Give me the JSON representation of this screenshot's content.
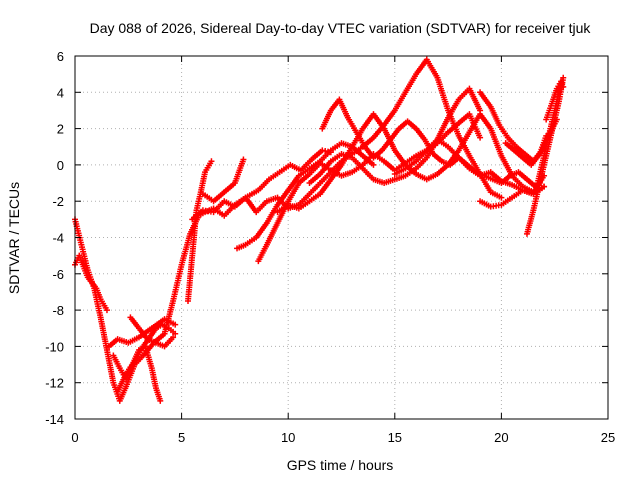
{
  "chart_data": {
    "type": "scatter",
    "title": "Day 088 of 2026, Sidereal Day-to-day VTEC variation (SDTVAR) for receiver tjuk",
    "xlabel": "GPS time / hours",
    "ylabel": "SDTVAR / TECUs",
    "xlim": [
      0,
      25
    ],
    "ylim": [
      -14,
      6
    ],
    "xticks": [
      0,
      5,
      10,
      15,
      20,
      25
    ],
    "yticks": [
      -14,
      -12,
      -10,
      -8,
      -6,
      -4,
      -2,
      0,
      2,
      4,
      6
    ],
    "grid": true,
    "grid_style": "dotted",
    "marker": "plus",
    "color": "#ff0000",
    "legend": "none",
    "series": [
      {
        "x": [
          0.0,
          0.3,
          0.6,
          0.9,
          1.2,
          1.5,
          1.8,
          2.1,
          2.4,
          2.8,
          3.2,
          3.7,
          4.2,
          4.6,
          5.0,
          5.4,
          5.8,
          6.1,
          6.5,
          7.0,
          7.5,
          8.0,
          8.6,
          9.1,
          9.6,
          10.1,
          10.6,
          11.1,
          11.6,
          12.0
        ],
        "y": [
          -3.0,
          -4.4,
          -5.8,
          -6.8,
          -8.4,
          -10.2,
          -12.0,
          -13.0,
          -12.2,
          -11.0,
          -10.5,
          -9.8,
          -9.3,
          -7.5,
          -5.5,
          -3.8,
          -2.8,
          -2.6,
          -2.4,
          -2.8,
          -2.2,
          -1.8,
          -1.4,
          -0.8,
          -0.4,
          0.0,
          -0.3,
          0.3,
          0.8,
          0.7
        ]
      },
      {
        "x": [
          0.0,
          0.2,
          0.4,
          0.6,
          0.8,
          1.0,
          1.2,
          1.5
        ],
        "y": [
          -5.5,
          -5.0,
          -5.6,
          -6.2,
          -6.5,
          -6.8,
          -7.4,
          -8.0
        ]
      },
      {
        "x": [
          1.8,
          2.1,
          2.4,
          2.7,
          3.0,
          3.3,
          3.6,
          3.8,
          4.0
        ],
        "y": [
          -10.5,
          -11.2,
          -11.8,
          -11.0,
          -10.2,
          -10.0,
          -11.2,
          -12.3,
          -13.0
        ]
      },
      {
        "x": [
          2.0,
          2.4,
          2.8,
          3.2,
          3.5,
          3.8,
          4.1,
          4.4,
          4.7
        ],
        "y": [
          -12.5,
          -11.5,
          -10.8,
          -10.0,
          -9.5,
          -9.0,
          -8.8,
          -9.0,
          -9.3
        ]
      },
      {
        "x": [
          1.6,
          2.0,
          2.5,
          3.0,
          3.6,
          4.2,
          4.7
        ],
        "y": [
          -10.0,
          -9.6,
          -9.8,
          -9.5,
          -9.0,
          -8.5,
          -8.8
        ]
      },
      {
        "x": [
          2.6,
          3.0,
          3.4,
          3.8,
          4.2,
          4.6
        ],
        "y": [
          -8.4,
          -9.0,
          -9.6,
          -9.8,
          -10.0,
          -9.5
        ]
      },
      {
        "x": [
          5.3,
          5.5,
          5.7,
          5.9,
          6.1,
          6.4
        ],
        "y": [
          -7.5,
          -5.0,
          -2.5,
          -1.5,
          -0.4,
          0.2
        ]
      },
      {
        "x": [
          5.5,
          6.0,
          6.5,
          7.0,
          7.5,
          8.0,
          8.5,
          9.0,
          9.5,
          10.0,
          10.5,
          11.0,
          11.5,
          12.0,
          12.5,
          13.0,
          13.5,
          14.0,
          14.5,
          15.0,
          15.5,
          16.0,
          16.5,
          17.0,
          17.5,
          18.0,
          18.5,
          19.0,
          19.5,
          20.0
        ],
        "y": [
          -3.0,
          -2.5,
          -2.6,
          -2.0,
          -2.3,
          -1.8,
          -2.6,
          -2.0,
          -1.8,
          -2.4,
          -2.2,
          -1.6,
          -1.0,
          -0.4,
          0.2,
          0.6,
          1.0,
          1.5,
          2.2,
          3.0,
          4.0,
          5.0,
          5.8,
          4.8,
          3.0,
          1.6,
          0.5,
          -0.5,
          -1.5,
          -1.8
        ]
      },
      {
        "x": [
          6.0,
          6.5,
          7.0,
          7.5,
          7.9
        ],
        "y": [
          -1.6,
          -2.0,
          -1.5,
          -1.0,
          0.3
        ]
      },
      {
        "x": [
          7.6,
          8.0,
          8.5,
          9.0,
          9.5,
          10.0,
          10.5,
          11.0,
          11.5,
          12.0,
          12.5,
          13.0,
          13.5,
          14.0
        ],
        "y": [
          -4.6,
          -4.4,
          -4.0,
          -3.2,
          -2.2,
          -1.4,
          -0.6,
          -0.2,
          0.2,
          0.8,
          1.2,
          1.0,
          0.5,
          0.0
        ]
      },
      {
        "x": [
          8.6,
          9.0,
          9.5,
          10.0,
          10.5,
          11.0,
          11.5,
          12.0,
          12.5,
          13.0,
          13.5,
          14.0,
          14.5,
          15.0,
          15.5,
          16.0,
          16.5,
          17.0,
          17.5,
          18.0,
          18.5,
          19.0
        ],
        "y": [
          -5.3,
          -4.4,
          -3.2,
          -2.0,
          -1.0,
          -0.5,
          0.1,
          -0.3,
          -0.6,
          -0.4,
          0.0,
          0.6,
          0.2,
          -0.3,
          0.1,
          0.5,
          0.8,
          1.2,
          1.8,
          2.3,
          2.8,
          1.5
        ]
      },
      {
        "x": [
          9.5,
          10.0,
          10.5,
          11.0,
          11.5,
          12.0,
          12.5,
          13.0,
          13.5,
          14.0,
          14.5,
          15.0,
          15.5,
          16.0,
          16.5,
          17.0,
          17.5,
          18.0,
          18.5,
          19.0,
          19.5,
          20.0,
          20.5,
          21.0,
          21.5,
          22.0
        ],
        "y": [
          -2.6,
          -2.2,
          -2.4,
          -2.0,
          -1.6,
          -0.8,
          0.0,
          1.0,
          2.0,
          2.8,
          2.0,
          0.8,
          0.0,
          -0.5,
          -0.8,
          -0.5,
          0.0,
          0.8,
          1.8,
          2.8,
          2.0,
          0.5,
          -0.6,
          -1.2,
          -1.5,
          -0.6
        ]
      },
      {
        "x": [
          11.0,
          11.5,
          12.0,
          12.5,
          13.0,
          13.5,
          14.0,
          14.5,
          15.0,
          15.5,
          16.0,
          16.5,
          17.0,
          17.5,
          18.0,
          18.5,
          19.0
        ],
        "y": [
          -1.0,
          -0.5,
          0.2,
          0.6,
          0.4,
          -0.2,
          -0.8,
          -1.0,
          -0.8,
          -0.6,
          -0.2,
          0.4,
          1.4,
          2.6,
          3.6,
          4.2,
          3.0
        ]
      },
      {
        "x": [
          11.6,
          12.0,
          12.4,
          12.8,
          13.2,
          13.6,
          14.0,
          14.4,
          14.8,
          15.2,
          15.6,
          16.0,
          16.4,
          16.8,
          17.2,
          17.6,
          18.0,
          18.4,
          18.8,
          19.2,
          19.6,
          20.0,
          20.4,
          20.8,
          21.2,
          21.6
        ],
        "y": [
          2.0,
          3.0,
          3.6,
          2.6,
          1.8,
          1.0,
          0.4,
          0.8,
          1.4,
          2.0,
          2.4,
          2.0,
          1.4,
          0.6,
          0.2,
          0.0,
          0.4,
          0.0,
          -0.4,
          -0.6,
          -0.8,
          -1.0,
          -0.6,
          -0.4,
          -0.8,
          -1.2
        ]
      },
      {
        "x": [
          15.0,
          15.5,
          16.0,
          16.5,
          17.0,
          17.5,
          18.0,
          18.5,
          19.0,
          19.5,
          20.0,
          20.5,
          21.0,
          21.5,
          22.0
        ],
        "y": [
          -0.5,
          -0.2,
          0.2,
          0.8,
          1.4,
          1.0,
          0.4,
          -0.2,
          -0.6,
          -0.4,
          -0.9,
          -1.1,
          -1.4,
          -1.6,
          -1.2
        ]
      },
      {
        "x": [
          19.0,
          19.5,
          19.9,
          20.3,
          20.7,
          21.1,
          21.5,
          21.9,
          22.3,
          22.6
        ],
        "y": [
          4.0,
          3.2,
          2.2,
          1.5,
          1.0,
          0.6,
          0.2,
          0.8,
          1.8,
          2.5
        ]
      },
      {
        "x": [
          19.0,
          19.5,
          20.0,
          20.5,
          21.0,
          21.5,
          22.0
        ],
        "y": [
          -2.0,
          -2.3,
          -2.2,
          -1.8,
          -1.4,
          -1.6,
          -1.2
        ]
      },
      {
        "x": [
          20.2,
          20.6,
          21.0,
          21.4,
          21.8,
          22.1
        ],
        "y": [
          1.2,
          0.8,
          0.4,
          0.0,
          0.6,
          1.6
        ]
      },
      {
        "x": [
          21.2,
          21.5,
          21.8,
          22.1,
          22.4,
          22.7,
          22.9
        ],
        "y": [
          -3.8,
          -2.5,
          -1.0,
          0.5,
          2.0,
          3.5,
          4.8
        ]
      },
      {
        "x": [
          21.6,
          21.9,
          22.2,
          22.5,
          22.8
        ],
        "y": [
          -1.5,
          0.0,
          1.5,
          3.0,
          4.5
        ]
      },
      {
        "x": [
          22.1,
          22.4,
          22.6,
          22.8,
          22.9
        ],
        "y": [
          2.5,
          3.5,
          4.2,
          4.6,
          4.3
        ]
      }
    ]
  }
}
